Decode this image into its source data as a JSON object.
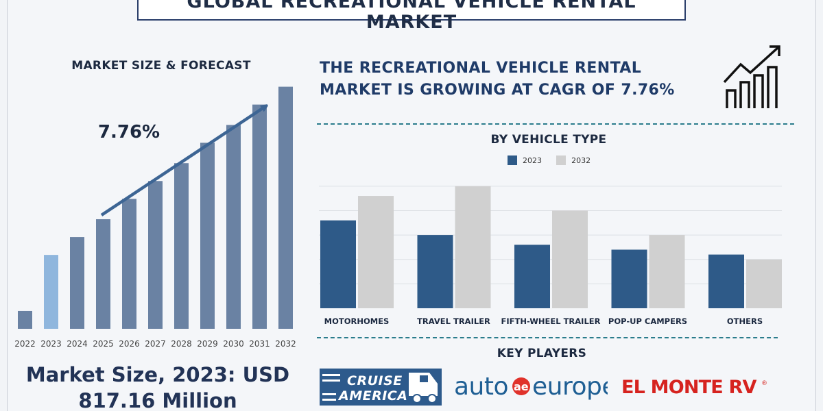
{
  "header": {
    "title": "GLOBAL RECREATIONAL VEHICLE RENTAL MARKET"
  },
  "left_panel": {
    "section_label": "MARKET SIZE & FORECAST",
    "cagr_label": "7.76%",
    "market_size_line1": "Market Size, 2023: USD",
    "market_size_line2": "817.16 Million"
  },
  "right_panel": {
    "headline_line1": "THE RECREATIONAL VEHICLE RENTAL",
    "headline_line2": "MARKET IS GROWING AT CAGR OF 7.76%",
    "vehicle_section_title": "BY VEHICLE TYPE",
    "key_players_title": "KEY PLAYERS"
  },
  "logos": {
    "cruise_america": "CRUISE AMERICA",
    "auto_europe": "auto europe.",
    "el_monte": "EL MONTE RV"
  },
  "colors": {
    "forecast_bar": "#6a82a3",
    "highlight_bar": "#8fb6dd",
    "series_2023": "#2e5a88",
    "series_2032": "#d0d0d0",
    "arrow": "#3d6594",
    "accent_text": "#1f3b68"
  },
  "chart_data": [
    {
      "type": "bar",
      "categories": [
        "2022",
        "2023",
        "2024",
        "2025",
        "2026",
        "2027",
        "2028",
        "2029",
        "2030",
        "2031",
        "2032"
      ],
      "values": [
        7,
        29,
        36,
        43,
        51,
        58,
        65,
        73,
        80,
        88,
        95
      ],
      "highlight_category": "2023",
      "ylim": [
        0,
        100
      ],
      "grid": false,
      "annotation": "7.76%",
      "trend_arrow": true
    },
    {
      "type": "bar",
      "title": "BY VEHICLE TYPE",
      "categories": [
        "MOTORHOMES",
        "TRAVEL TRAILER",
        "FIFTH-WHEEL TRAILER",
        "POP-UP CAMPERS",
        "OTHERS"
      ],
      "series": [
        {
          "name": "2023",
          "values": [
            36,
            30,
            26,
            24,
            22
          ]
        },
        {
          "name": "2032",
          "values": [
            46,
            50,
            40,
            30,
            20
          ]
        }
      ],
      "ylim": [
        0,
        55
      ],
      "grid": true,
      "legend": "top"
    }
  ]
}
